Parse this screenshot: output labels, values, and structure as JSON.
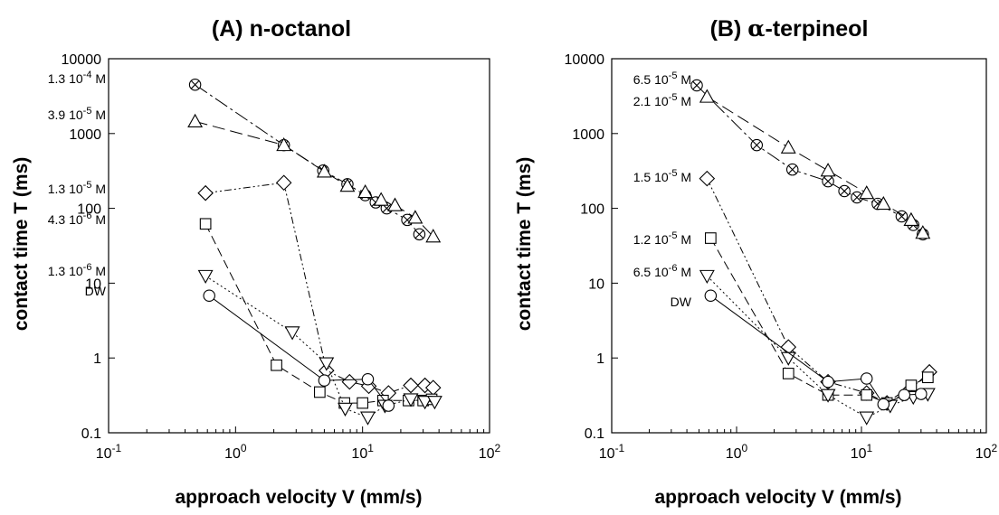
{
  "chart_data": [
    {
      "type": "scatter",
      "title": "(A) n-octanol",
      "xlabel": "approach velocity V (mm/s)",
      "ylabel": "contact time T  (ms)",
      "xscale": "log",
      "yscale": "log",
      "xlim": [
        0.1,
        100
      ],
      "ylim": [
        0.1,
        10000
      ],
      "x_ticks": [
        {
          "base": "10",
          "exp": "-1"
        },
        {
          "base": "10",
          "exp": "0"
        },
        {
          "base": "10",
          "exp": "1"
        },
        {
          "base": "10",
          "exp": "2"
        }
      ],
      "y_ticks": [
        "0.1",
        "1",
        "10",
        "100",
        "1000",
        "10000"
      ],
      "grid": false,
      "series": [
        {
          "name": "1.3 10-4 M",
          "label_base": "1.3 10",
          "label_exp": "-4",
          "label_unit": " M",
          "marker": "circle-x",
          "dash": "16 4 3 4",
          "x": [
            0.48,
            2.4,
            4.9,
            7.6,
            10.5,
            12.7,
            15.5,
            22.5,
            28.0
          ],
          "y": [
            4500,
            700,
            320,
            210,
            150,
            120,
            100,
            70,
            45
          ]
        },
        {
          "name": "3.9 10-5 M",
          "label_base": "3.9 10",
          "label_exp": "-5",
          "label_unit": " M",
          "marker": "triangle",
          "dash": "14 6",
          "x": [
            0.48,
            2.4,
            5.0,
            7.6,
            10.5,
            14.0,
            18.0,
            26.0,
            36.0
          ],
          "y": [
            1450,
            700,
            310,
            200,
            165,
            130,
            110,
            75,
            42
          ]
        },
        {
          "name": "1.3 10-5 M",
          "label_base": "1.3 10",
          "label_exp": "-5",
          "label_unit": " M",
          "marker": "diamond",
          "dash": "8 3 2 3 2 3",
          "x": [
            0.58,
            2.4,
            5.2,
            7.9,
            11.2,
            16.0,
            24.0,
            31.0,
            36.0
          ],
          "y": [
            160,
            220,
            0.68,
            0.48,
            0.42,
            0.34,
            0.43,
            0.43,
            0.4
          ]
        },
        {
          "name": "4.3 10-6 M",
          "label_base": "4.3 10",
          "label_exp": "-6",
          "label_unit": " M",
          "marker": "square",
          "dash": "10 5",
          "x": [
            0.58,
            2.1,
            4.6,
            7.2,
            10.0,
            14.5,
            23.0,
            30.0,
            35.0
          ],
          "y": [
            62,
            0.8,
            0.35,
            0.25,
            0.25,
            0.27,
            0.27,
            0.27,
            0.28
          ]
        },
        {
          "name": "1.3 10-6 M",
          "label_base": "1.3 10",
          "label_exp": "-6",
          "label_unit": " M",
          "marker": "triangle-down",
          "dash": "2 3",
          "x": [
            0.58,
            2.8,
            5.2,
            7.3,
            11.0,
            15.0,
            24.0,
            31.0,
            37.0
          ],
          "y": [
            12.5,
            2.2,
            0.85,
            0.21,
            0.16,
            0.23,
            0.28,
            0.26,
            0.26
          ]
        },
        {
          "name": "DW",
          "label_base": "DW",
          "label_exp": "",
          "label_unit": "",
          "marker": "circle",
          "dash": "none",
          "x": [
            0.62,
            5.0,
            11.0,
            16.0
          ],
          "y": [
            6.8,
            0.5,
            0.52,
            0.23
          ]
        }
      ]
    },
    {
      "type": "scatter",
      "title_prefix": "(B) ",
      "title_symbol": "α",
      "title_suffix": "-terpineol",
      "xlabel": "approach velocity V (mm/s)",
      "ylabel": "contact time T  (ms)",
      "xscale": "log",
      "yscale": "log",
      "xlim": [
        0.1,
        100
      ],
      "ylim": [
        0.1,
        10000
      ],
      "x_ticks": [
        {
          "base": "10",
          "exp": "-1"
        },
        {
          "base": "10",
          "exp": "0"
        },
        {
          "base": "10",
          "exp": "1"
        },
        {
          "base": "10",
          "exp": "2"
        }
      ],
      "y_ticks": [
        "0.1",
        "1",
        "10",
        "100",
        "1000",
        "10000"
      ],
      "grid": false,
      "series": [
        {
          "name": "6.5 10-5 M",
          "label_base": "6.5 10",
          "label_exp": "-5",
          "label_unit": " M",
          "marker": "circle-x",
          "dash": "16 4 3 4",
          "x": [
            0.48,
            1.45,
            2.8,
            5.4,
            7.3,
            9.2,
            13.5,
            21.0,
            26.0,
            31.0
          ],
          "y": [
            4400,
            700,
            330,
            230,
            170,
            140,
            115,
            78,
            60,
            45
          ]
        },
        {
          "name": "2.1 10-5 M",
          "label_base": "2.1 10",
          "label_exp": "-5",
          "label_unit": " M",
          "marker": "triangle",
          "dash": "14 6",
          "x": [
            0.58,
            2.6,
            5.4,
            11.0,
            15.0,
            25.0,
            31.0
          ],
          "y": [
            3100,
            650,
            320,
            160,
            115,
            70,
            47
          ]
        },
        {
          "name": "1.5 10-5 M",
          "label_base": "1.5 10",
          "label_exp": "-5",
          "label_unit": " M",
          "marker": "diamond",
          "dash": "8 3 2 3 2 3",
          "x": [
            0.58,
            2.6,
            5.4,
            11.0,
            16.0,
            23.0,
            35.0
          ],
          "y": [
            250,
            1.4,
            0.48,
            0.34,
            0.25,
            0.34,
            0.65
          ]
        },
        {
          "name": "1.2 10-5 M",
          "label_base": "1.2 10",
          "label_exp": "-5",
          "label_unit": " M",
          "marker": "square",
          "dash": "10 5",
          "x": [
            0.62,
            2.6,
            5.4,
            11.0,
            16.0,
            25.0,
            34.0
          ],
          "y": [
            40,
            0.62,
            0.32,
            0.32,
            0.25,
            0.43,
            0.55
          ]
        },
        {
          "name": "6.5 10-6 M",
          "label_base": "6.5 10",
          "label_exp": "-6",
          "label_unit": " M",
          "marker": "triangle-down",
          "dash": "2 3",
          "x": [
            0.58,
            2.6,
            5.4,
            11.0,
            17.0,
            26.0,
            34.0
          ],
          "y": [
            12.5,
            1.0,
            0.32,
            0.16,
            0.23,
            0.3,
            0.33
          ]
        },
        {
          "name": "DW",
          "label_base": "DW",
          "label_exp": "",
          "label_unit": "",
          "marker": "circle",
          "dash": "none",
          "x": [
            0.62,
            5.4,
            11.0,
            15.0,
            22.0,
            30.0
          ],
          "y": [
            6.8,
            0.48,
            0.53,
            0.24,
            0.32,
            0.33
          ]
        }
      ]
    }
  ]
}
